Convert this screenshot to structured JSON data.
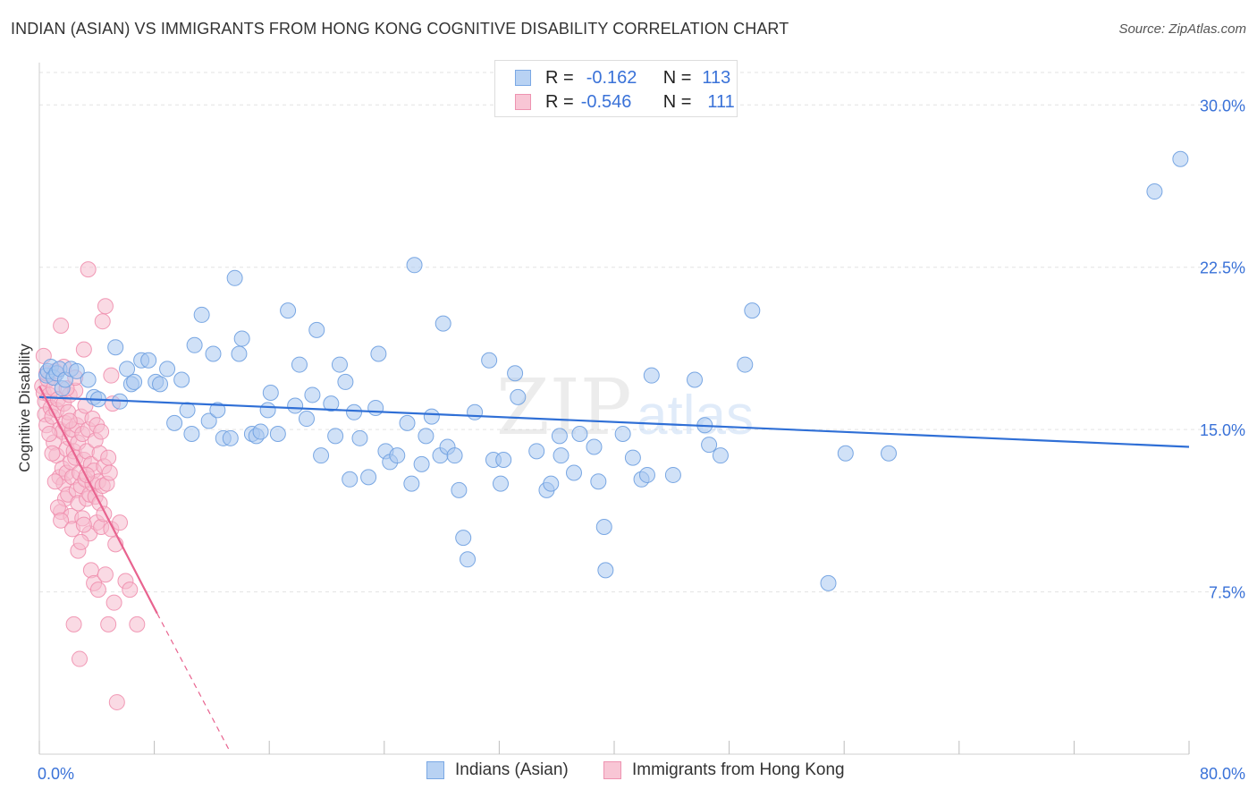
{
  "header": {
    "title": "INDIAN (ASIAN) VS IMMIGRANTS FROM HONG KONG COGNITIVE DISABILITY CORRELATION CHART",
    "source": "Source: ZipAtlas.com"
  },
  "colors": {
    "blue_fill": "#a9c8f0",
    "blue_stroke": "#6d9fe0",
    "blue_line": "#2f6fd6",
    "pink_fill": "#f6bccd",
    "pink_stroke": "#ef8fae",
    "pink_line": "#e8638f",
    "axis_text": "#3a72d8",
    "grid": "#e3e3e3"
  },
  "legend_top": {
    "rows": [
      {
        "r_label": "R =",
        "r_value": "-0.162",
        "n_label": "N =",
        "n_value": "113"
      },
      {
        "r_label": "R =",
        "r_value": "-0.546",
        "n_label": "N =",
        "n_value": "111"
      }
    ]
  },
  "legend_bottom": {
    "items": [
      "Indians (Asian)",
      "Immigrants from Hong Kong"
    ]
  },
  "watermark": {
    "zip": "ZIP",
    "atlas": "atlas"
  },
  "chart_data": {
    "type": "scatter",
    "title": "INDIAN (ASIAN) VS IMMIGRANTS FROM HONG KONG COGNITIVE DISABILITY CORRELATION CHART",
    "xlabel": "",
    "ylabel": "Cognitive Disability",
    "xlim": [
      0,
      80
    ],
    "ylim": [
      0,
      31.5
    ],
    "x_tick_labels": [
      "0.0%",
      "80.0%"
    ],
    "y_ticks": [
      7.5,
      15.0,
      22.5,
      30.0
    ],
    "y_tick_labels": [
      "7.5%",
      "15.0%",
      "22.5%",
      "30.0%"
    ],
    "grid": true,
    "legend_position": "top-center",
    "series": [
      {
        "name": "Indians (Asian)",
        "r": -0.162,
        "n": 113,
        "trend": {
          "x": [
            0,
            80
          ],
          "y": [
            16.5,
            14.2
          ]
        },
        "points": [
          [
            0.5,
            17.5
          ],
          [
            0.6,
            17.7
          ],
          [
            0.8,
            17.9
          ],
          [
            1.0,
            17.4
          ],
          [
            1.2,
            17.6
          ],
          [
            1.4,
            17.8
          ],
          [
            1.6,
            16.9
          ],
          [
            1.8,
            17.3
          ],
          [
            2.2,
            17.8
          ],
          [
            2.6,
            17.7
          ],
          [
            3.4,
            17.3
          ],
          [
            3.8,
            16.5
          ],
          [
            4.1,
            16.4
          ],
          [
            5.3,
            18.8
          ],
          [
            5.6,
            16.3
          ],
          [
            6.1,
            17.8
          ],
          [
            6.4,
            17.1
          ],
          [
            6.6,
            17.2
          ],
          [
            7.1,
            18.2
          ],
          [
            7.6,
            18.2
          ],
          [
            8.1,
            17.2
          ],
          [
            8.4,
            17.1
          ],
          [
            8.9,
            17.8
          ],
          [
            9.4,
            15.3
          ],
          [
            9.9,
            17.3
          ],
          [
            10.3,
            15.9
          ],
          [
            10.6,
            14.8
          ],
          [
            10.8,
            18.9
          ],
          [
            11.3,
            20.3
          ],
          [
            11.8,
            15.4
          ],
          [
            12.1,
            18.5
          ],
          [
            12.4,
            15.9
          ],
          [
            12.8,
            14.6
          ],
          [
            13.3,
            14.6
          ],
          [
            13.6,
            22.0
          ],
          [
            13.9,
            18.5
          ],
          [
            14.1,
            19.2
          ],
          [
            14.8,
            14.8
          ],
          [
            15.1,
            14.7
          ],
          [
            15.4,
            14.9
          ],
          [
            15.9,
            15.9
          ],
          [
            16.1,
            16.7
          ],
          [
            16.6,
            14.8
          ],
          [
            17.3,
            20.5
          ],
          [
            17.8,
            16.1
          ],
          [
            18.1,
            18.0
          ],
          [
            18.6,
            15.5
          ],
          [
            19.0,
            16.6
          ],
          [
            19.3,
            19.6
          ],
          [
            19.6,
            13.8
          ],
          [
            20.3,
            16.2
          ],
          [
            20.6,
            14.7
          ],
          [
            20.9,
            18.0
          ],
          [
            21.3,
            17.2
          ],
          [
            21.6,
            12.7
          ],
          [
            21.9,
            15.8
          ],
          [
            22.3,
            14.6
          ],
          [
            22.9,
            12.8
          ],
          [
            23.4,
            16.0
          ],
          [
            23.6,
            18.5
          ],
          [
            24.1,
            14.0
          ],
          [
            24.4,
            13.5
          ],
          [
            24.9,
            13.8
          ],
          [
            25.6,
            15.3
          ],
          [
            25.9,
            12.5
          ],
          [
            26.1,
            22.6
          ],
          [
            26.6,
            13.4
          ],
          [
            26.9,
            14.7
          ],
          [
            27.3,
            15.6
          ],
          [
            27.9,
            13.8
          ],
          [
            28.1,
            19.9
          ],
          [
            28.4,
            14.2
          ],
          [
            28.9,
            13.8
          ],
          [
            29.2,
            12.2
          ],
          [
            29.5,
            10.0
          ],
          [
            29.8,
            9.0
          ],
          [
            30.3,
            15.8
          ],
          [
            31.3,
            18.2
          ],
          [
            31.6,
            13.6
          ],
          [
            32.1,
            12.5
          ],
          [
            32.3,
            13.6
          ],
          [
            33.1,
            17.6
          ],
          [
            33.3,
            16.5
          ],
          [
            34.6,
            14.0
          ],
          [
            35.3,
            12.2
          ],
          [
            35.6,
            12.5
          ],
          [
            36.2,
            14.7
          ],
          [
            36.3,
            13.8
          ],
          [
            37.2,
            13.0
          ],
          [
            37.6,
            14.8
          ],
          [
            38.6,
            14.2
          ],
          [
            38.9,
            12.6
          ],
          [
            39.3,
            10.5
          ],
          [
            39.4,
            8.5
          ],
          [
            40.6,
            14.8
          ],
          [
            41.3,
            13.7
          ],
          [
            41.9,
            12.7
          ],
          [
            42.3,
            12.9
          ],
          [
            42.6,
            17.5
          ],
          [
            44.1,
            12.9
          ],
          [
            45.6,
            17.3
          ],
          [
            46.3,
            15.2
          ],
          [
            46.6,
            14.3
          ],
          [
            47.4,
            13.8
          ],
          [
            49.1,
            18.0
          ],
          [
            49.6,
            20.5
          ],
          [
            54.9,
            7.9
          ],
          [
            56.1,
            13.9
          ],
          [
            59.1,
            13.9
          ],
          [
            77.6,
            26.0
          ],
          [
            79.4,
            27.5
          ]
        ]
      },
      {
        "name": "Immigrants from Hong Kong",
        "r": -0.546,
        "n": 111,
        "trend": {
          "x": [
            0,
            8.2
          ],
          "y": [
            17.0,
            6.5
          ]
        },
        "trend_dashed": {
          "x": [
            8.2,
            13.2
          ],
          "y": [
            6.5,
            0.2
          ]
        },
        "points": [
          [
            0.2,
            17.0
          ],
          [
            0.3,
            16.7
          ],
          [
            0.4,
            16.3
          ],
          [
            0.4,
            15.7
          ],
          [
            0.5,
            15.2
          ],
          [
            0.6,
            17.3
          ],
          [
            0.7,
            16.6
          ],
          [
            0.8,
            16.0
          ],
          [
            0.9,
            15.6
          ],
          [
            1.0,
            16.9
          ],
          [
            1.0,
            14.4
          ],
          [
            1.1,
            17.7
          ],
          [
            1.2,
            15.9
          ],
          [
            1.2,
            13.8
          ],
          [
            1.3,
            16.4
          ],
          [
            1.4,
            15.0
          ],
          [
            1.4,
            12.8
          ],
          [
            1.5,
            11.2
          ],
          [
            1.5,
            19.8
          ],
          [
            1.6,
            14.9
          ],
          [
            1.6,
            13.2
          ],
          [
            1.7,
            16.2
          ],
          [
            1.7,
            12.5
          ],
          [
            1.8,
            15.3
          ],
          [
            1.8,
            11.8
          ],
          [
            1.9,
            14.1
          ],
          [
            1.9,
            13.0
          ],
          [
            2.0,
            15.8
          ],
          [
            2.0,
            12.0
          ],
          [
            2.1,
            16.6
          ],
          [
            2.1,
            14.6
          ],
          [
            2.2,
            13.5
          ],
          [
            2.2,
            11.0
          ],
          [
            2.3,
            15.0
          ],
          [
            2.3,
            12.8
          ],
          [
            2.4,
            14.0
          ],
          [
            2.4,
            6.0
          ],
          [
            2.5,
            16.8
          ],
          [
            2.5,
            13.7
          ],
          [
            2.6,
            15.2
          ],
          [
            2.6,
            12.2
          ],
          [
            2.7,
            14.4
          ],
          [
            2.7,
            11.6
          ],
          [
            2.8,
            13.0
          ],
          [
            2.8,
            4.4
          ],
          [
            2.9,
            15.6
          ],
          [
            2.9,
            12.4
          ],
          [
            3.0,
            14.8
          ],
          [
            3.0,
            10.9
          ],
          [
            3.1,
            13.6
          ],
          [
            3.1,
            18.7
          ],
          [
            3.2,
            16.1
          ],
          [
            3.2,
            12.7
          ],
          [
            3.3,
            14.0
          ],
          [
            3.3,
            11.8
          ],
          [
            3.4,
            22.4
          ],
          [
            3.4,
            15.0
          ],
          [
            3.5,
            12.0
          ],
          [
            3.5,
            10.2
          ],
          [
            3.6,
            13.4
          ],
          [
            3.6,
            8.5
          ],
          [
            3.7,
            15.5
          ],
          [
            3.7,
            12.5
          ],
          [
            3.8,
            13.1
          ],
          [
            3.8,
            7.9
          ],
          [
            3.9,
            14.5
          ],
          [
            3.9,
            11.9
          ],
          [
            4.0,
            15.2
          ],
          [
            4.0,
            10.7
          ],
          [
            4.1,
            12.6
          ],
          [
            4.1,
            7.6
          ],
          [
            4.2,
            13.9
          ],
          [
            4.2,
            11.6
          ],
          [
            4.3,
            14.9
          ],
          [
            4.3,
            10.5
          ],
          [
            4.4,
            12.4
          ],
          [
            4.4,
            20.0
          ],
          [
            4.5,
            13.3
          ],
          [
            4.5,
            11.1
          ],
          [
            4.6,
            20.7
          ],
          [
            4.6,
            8.3
          ],
          [
            4.7,
            12.5
          ],
          [
            4.8,
            13.7
          ],
          [
            4.8,
            6.0
          ],
          [
            4.9,
            13.0
          ],
          [
            5.0,
            17.5
          ],
          [
            5.0,
            10.4
          ],
          [
            5.1,
            16.2
          ],
          [
            5.2,
            7.0
          ],
          [
            5.3,
            9.7
          ],
          [
            5.4,
            2.4
          ],
          [
            5.6,
            10.7
          ],
          [
            6.0,
            8.0
          ],
          [
            6.3,
            7.6
          ],
          [
            6.8,
            6.0
          ],
          [
            0.3,
            18.4
          ],
          [
            0.5,
            17.6
          ],
          [
            0.7,
            14.8
          ],
          [
            0.9,
            13.9
          ],
          [
            1.1,
            12.6
          ],
          [
            1.3,
            11.4
          ],
          [
            1.5,
            10.8
          ],
          [
            1.7,
            17.9
          ],
          [
            1.9,
            16.9
          ],
          [
            2.1,
            15.4
          ],
          [
            2.3,
            10.4
          ],
          [
            2.5,
            17.4
          ],
          [
            2.7,
            9.4
          ],
          [
            2.9,
            9.8
          ],
          [
            3.1,
            10.6
          ],
          [
            3.3,
            12.9
          ]
        ]
      }
    ]
  }
}
